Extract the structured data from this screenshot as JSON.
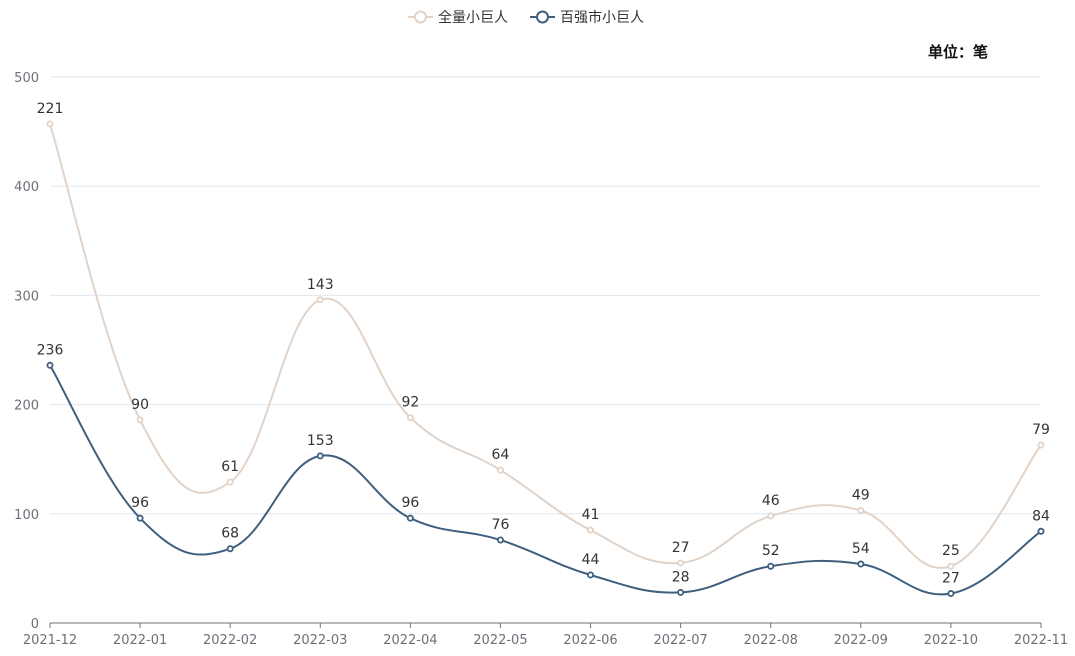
{
  "chart_data": {
    "type": "line",
    "unit_label": "单位：笔",
    "ylim": [
      0,
      500
    ],
    "yticks": [
      0,
      100,
      200,
      300,
      400,
      500
    ],
    "grid": true,
    "legend_position": "top-center",
    "categories": [
      "2021-12",
      "2022-01",
      "2022-02",
      "2022-03",
      "2022-04",
      "2022-05",
      "2022-06",
      "2022-07",
      "2022-08",
      "2022-09",
      "2022-10",
      "2022-11"
    ],
    "series": [
      {
        "name": "全量小巨人",
        "color": "#e2d3c8",
        "values": [
          457,
          186,
          129,
          296,
          188,
          140,
          85,
          55,
          98,
          103,
          52,
          163
        ],
        "labels": [
          "221",
          "90",
          "61",
          "143",
          "92",
          "64",
          "41",
          "27",
          "46",
          "49",
          "25",
          "79"
        ]
      },
      {
        "name": "百强市小巨人",
        "color": "#3f5f7e",
        "values": [
          236,
          96,
          68,
          153,
          96,
          76,
          44,
          28,
          52,
          54,
          27,
          84
        ],
        "labels": [
          "236",
          "96",
          "68",
          "153",
          "96",
          "76",
          "44",
          "28",
          "52",
          "54",
          "27",
          "84"
        ]
      }
    ]
  }
}
